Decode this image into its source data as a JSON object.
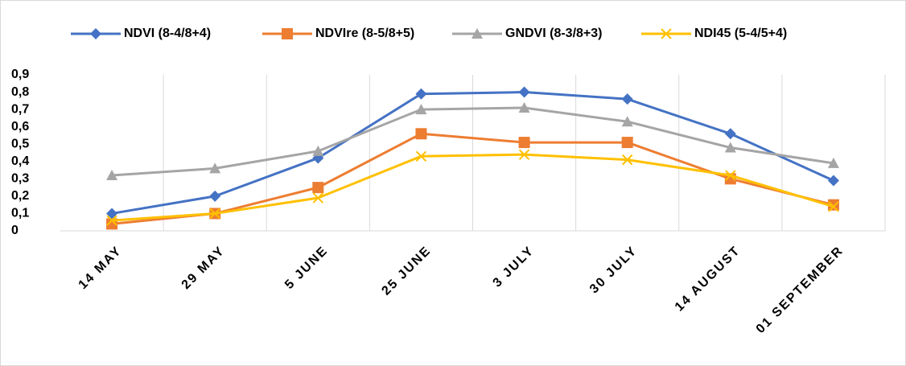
{
  "chart_data": {
    "type": "line",
    "categories": [
      "14 MAY",
      "29 MAY",
      "5 JUNE",
      "25 JUNE",
      "3 JULY",
      "30 JULY",
      "14 AUGUST",
      "01 SEPTEMBER"
    ],
    "series": [
      {
        "name": "NDVI (8-4/8+4)",
        "color": "#4472c4",
        "marker": "diamond",
        "values": [
          0.1,
          0.2,
          0.42,
          0.79,
          0.8,
          0.76,
          0.56,
          0.29
        ]
      },
      {
        "name": "NDVIre (8-5/8+5)",
        "color": "#ed7d31",
        "marker": "square",
        "values": [
          0.04,
          0.1,
          0.25,
          0.56,
          0.51,
          0.51,
          0.3,
          0.15
        ]
      },
      {
        "name": "GNDVI (8-3/8+3)",
        "color": "#a5a5a5",
        "marker": "triangle",
        "values": [
          0.32,
          0.36,
          0.46,
          0.7,
          0.71,
          0.63,
          0.48,
          0.39
        ]
      },
      {
        "name": "NDI45 (5-4/5+4)",
        "color": "#ffc000",
        "marker": "x",
        "values": [
          0.06,
          0.1,
          0.19,
          0.43,
          0.44,
          0.41,
          0.32,
          0.14
        ]
      }
    ],
    "ylim": [
      0,
      0.9
    ],
    "yticks": [
      0,
      {
        "value": 0.1,
        "label": "0,1"
      },
      {
        "value": 0.2,
        "label": "0,2"
      },
      {
        "value": 0.3,
        "label": "0,3"
      },
      {
        "value": 0.4,
        "label": "0,4"
      },
      {
        "value": 0.5,
        "label": "0,5"
      },
      {
        "value": 0.6,
        "label": "0,6"
      },
      {
        "value": 0.7,
        "label": "0,7"
      },
      {
        "value": 0.8,
        "label": "0,8"
      },
      {
        "value": 0.9,
        "label": "0,9"
      }
    ],
    "grid": "vertical",
    "legend": "top"
  }
}
